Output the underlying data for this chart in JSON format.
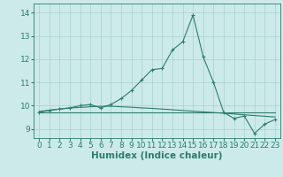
{
  "xlabel": "Humidex (Indice chaleur)",
  "x": [
    0,
    1,
    2,
    3,
    4,
    5,
    6,
    7,
    8,
    9,
    10,
    11,
    12,
    13,
    14,
    15,
    16,
    17,
    18,
    19,
    20,
    21,
    22,
    23
  ],
  "line_humidex": [
    9.7,
    9.8,
    9.85,
    9.9,
    10.0,
    10.05,
    9.9,
    10.05,
    10.3,
    10.65,
    11.1,
    11.55,
    11.6,
    12.4,
    12.75,
    13.9,
    12.1,
    11.0,
    9.7,
    9.45,
    9.55,
    8.8,
    9.2,
    9.4
  ],
  "line_straight": [
    9.75,
    9.8,
    9.85,
    9.9,
    9.92,
    9.95,
    9.97,
    9.97,
    9.95,
    9.93,
    9.9,
    9.88,
    9.85,
    9.82,
    9.79,
    9.76,
    9.73,
    9.7,
    9.67,
    9.64,
    9.6,
    9.57,
    9.54,
    9.51
  ],
  "line_flat": [
    9.72,
    9.72,
    9.72,
    9.72,
    9.72,
    9.72,
    9.72,
    9.72,
    9.72,
    9.72,
    9.72,
    9.72,
    9.72,
    9.72,
    9.72,
    9.72,
    9.72,
    9.72,
    9.72,
    9.72,
    9.72,
    9.72,
    9.72,
    9.72
  ],
  "line_color": "#2d7d6e",
  "bg_color": "#cceaea",
  "grid_color": "#aacfcf",
  "ylim": [
    8.6,
    14.4
  ],
  "xlim": [
    -0.5,
    23.5
  ],
  "yticks": [
    9,
    10,
    11,
    12,
    13,
    14
  ],
  "xticks": [
    0,
    1,
    2,
    3,
    4,
    5,
    6,
    7,
    8,
    9,
    10,
    11,
    12,
    13,
    14,
    15,
    16,
    17,
    18,
    19,
    20,
    21,
    22,
    23
  ],
  "tick_fontsize": 6.5,
  "label_fontsize": 7.5
}
